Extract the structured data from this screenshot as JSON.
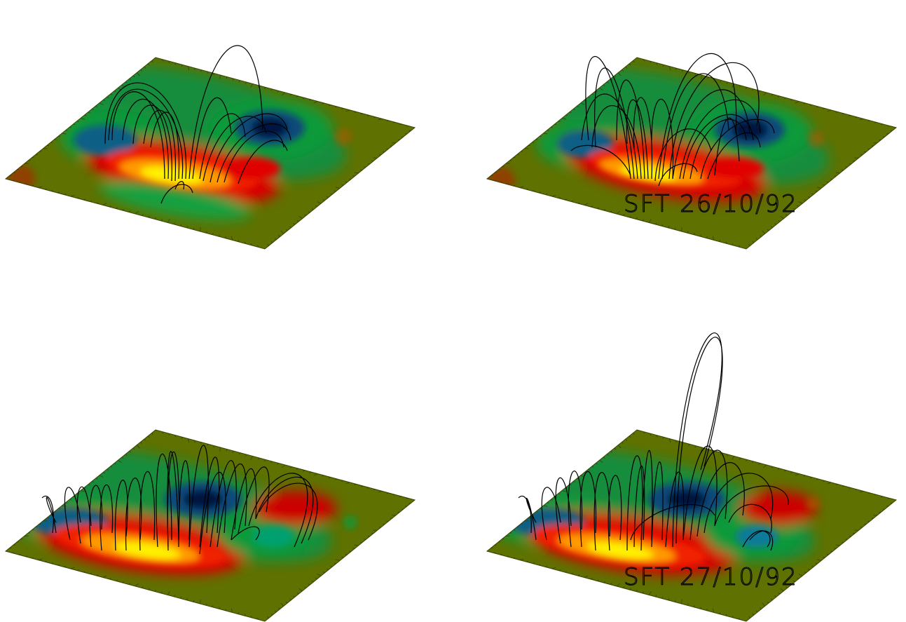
{
  "panels": [
    {
      "id": "top-left",
      "label": "",
      "line_count": 17
    },
    {
      "id": "top-right",
      "label": "SFT 26/10/92",
      "line_count": 21
    },
    {
      "id": "bottom-left",
      "label": "",
      "line_count": 24
    },
    {
      "id": "bottom-right",
      "label": "SFT 27/10/92",
      "line_count": 24
    }
  ],
  "colors": {
    "background": "#ffffff",
    "plane_base": "#5f7100",
    "tick_color": "#3a4200",
    "positive_core": "#fff200",
    "positive_mid": "#ff9a00",
    "positive_outer": "#e10000",
    "negative_core": "#001540",
    "negative_mid": "#0a5e86",
    "negative_outer": "#0f9a3a",
    "field_line": "#000000"
  }
}
